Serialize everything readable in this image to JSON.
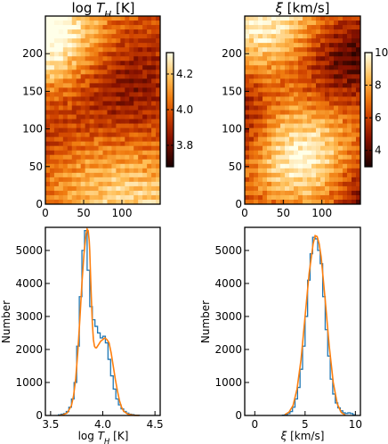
{
  "figure": {
    "panels": [
      {
        "id": "map-logTH",
        "title": "log T_H [K]"
      },
      {
        "id": "map-xi",
        "title": "ξ [km/s]"
      }
    ]
  },
  "chart_data": [
    {
      "type": "heatmap",
      "title": "log T_H [K]",
      "title_parts": {
        "base": "log ",
        "symbol": "T",
        "sub": "H",
        "unit": " [K]"
      },
      "xlim": [
        0,
        150
      ],
      "ylim": [
        0,
        250
      ],
      "x_ticks": [
        0,
        50,
        100
      ],
      "y_ticks": [
        0,
        50,
        100,
        150,
        200
      ],
      "colormap": "afmhot",
      "colorbar": {
        "range": [
          3.68,
          4.32
        ],
        "ticks": [
          3.8,
          4.0,
          4.2
        ],
        "tick_labels": [
          "3.8",
          "4.0",
          "4.2"
        ]
      },
      "pattern_seed": 7,
      "pattern_bias": 0.56
    },
    {
      "type": "heatmap",
      "title": "ξ [km/s]",
      "title_parts": {
        "base": "",
        "symbol": "ξ",
        "sub": "",
        "unit": " [km/s]"
      },
      "xlim": [
        0,
        150
      ],
      "ylim": [
        0,
        250
      ],
      "x_ticks": [
        0,
        50,
        100
      ],
      "y_ticks": [
        0,
        50,
        100,
        150,
        200
      ],
      "colormap": "afmhot",
      "colorbar": {
        "range": [
          3,
          10
        ],
        "ticks": [
          4,
          6,
          8,
          10
        ],
        "tick_labels": [
          "4",
          "6",
          "8",
          "10"
        ]
      },
      "pattern_seed": 23,
      "pattern_bias": 0.5
    },
    {
      "type": "histogram",
      "xlabel": "log T_H [K]",
      "xlabel_parts": {
        "base": "log ",
        "symbol": "T",
        "sub": "H",
        "unit": " [K]"
      },
      "ylabel": "Number",
      "xlim": [
        3.45,
        4.55
      ],
      "ylim": [
        0,
        5700
      ],
      "x_ticks": [
        3.5,
        4.0,
        4.5
      ],
      "x_tick_labels": [
        "3.5",
        "4.0",
        "4.5"
      ],
      "y_ticks": [
        0,
        1000,
        2000,
        3000,
        4000,
        5000
      ],
      "y_tick_labels": [
        "0",
        "1000",
        "2000",
        "3000",
        "4000",
        "5000"
      ],
      "bin_edges": [
        3.575,
        3.6,
        3.625,
        3.65,
        3.675,
        3.7,
        3.725,
        3.75,
        3.775,
        3.8,
        3.825,
        3.85,
        3.875,
        3.9,
        3.925,
        3.95,
        3.975,
        4.0,
        4.025,
        4.05,
        4.075,
        4.1,
        4.125,
        4.15,
        4.175,
        4.2,
        4.225,
        4.25,
        4.275,
        4.3,
        4.325,
        4.35
      ],
      "counts": [
        20,
        40,
        60,
        120,
        250,
        500,
        1000,
        2100,
        3600,
        5000,
        5600,
        4400,
        3300,
        2900,
        2700,
        2500,
        2350,
        2400,
        2200,
        1700,
        1200,
        800,
        500,
        320,
        200,
        120,
        70,
        40,
        25,
        10,
        5
      ],
      "fit_curve": {
        "x": [
          3.58,
          3.62,
          3.66,
          3.7,
          3.72,
          3.74,
          3.76,
          3.78,
          3.8,
          3.82,
          3.84,
          3.85,
          3.86,
          3.87,
          3.875,
          3.88,
          3.89,
          3.9,
          3.91,
          3.92,
          3.93,
          3.94,
          3.96,
          3.98,
          4.0,
          4.02,
          4.04,
          4.06,
          4.08,
          4.1,
          4.12,
          4.14,
          4.16,
          4.18,
          4.2,
          4.24,
          4.3,
          4.35
        ],
        "y": [
          0,
          20,
          80,
          300,
          600,
          1100,
          1900,
          2900,
          4000,
          4900,
          5500,
          5650,
          5600,
          5300,
          5000,
          4500,
          3600,
          2800,
          2300,
          2100,
          2050,
          2050,
          2150,
          2250,
          2300,
          2350,
          2300,
          2200,
          1900,
          1500,
          1100,
          750,
          450,
          250,
          130,
          40,
          5,
          0
        ]
      },
      "series_colors": {
        "histogram": "#1f77b4",
        "fit": "#ff7f0e"
      }
    },
    {
      "type": "histogram",
      "xlabel": "ξ [km/s]",
      "xlabel_parts": {
        "base": "",
        "symbol": "ξ",
        "sub": "",
        "unit": " [km/s]"
      },
      "ylabel": "Number",
      "xlim": [
        -1,
        10.5
      ],
      "ylim": [
        0,
        5700
      ],
      "x_ticks": [
        0,
        5,
        10
      ],
      "x_tick_labels": [
        "0",
        "5",
        "10"
      ],
      "y_ticks": [
        0,
        1000,
        2000,
        3000,
        4000,
        5000
      ],
      "y_tick_labels": [
        "0",
        "1000",
        "2000",
        "3000",
        "4000",
        "5000"
      ],
      "bin_edges": [
        2.75,
        3.0,
        3.25,
        3.5,
        3.75,
        4.0,
        4.25,
        4.5,
        4.75,
        5.0,
        5.25,
        5.5,
        5.75,
        6.0,
        6.25,
        6.5,
        6.75,
        7.0,
        7.25,
        7.5,
        7.75,
        8.0,
        8.25,
        8.5,
        8.75,
        9.0,
        9.25,
        9.5,
        9.75,
        10.0
      ],
      "counts": [
        10,
        30,
        60,
        120,
        250,
        500,
        850,
        1400,
        2100,
        3000,
        4100,
        4900,
        5400,
        5350,
        5000,
        4600,
        3600,
        2600,
        1800,
        1100,
        650,
        380,
        230,
        140,
        80,
        60,
        80,
        60,
        20
      ],
      "fit_curve": {
        "x": [
          3.0,
          3.4,
          3.8,
          4.2,
          4.6,
          5.0,
          5.4,
          5.8,
          6.0,
          6.2,
          6.4,
          6.6,
          7.0,
          7.4,
          7.8,
          8.2,
          8.6,
          9.0
        ],
        "y": [
          30,
          100,
          300,
          800,
          1700,
          3000,
          4300,
          5200,
          5450,
          5420,
          5200,
          4800,
          3500,
          2100,
          1000,
          350,
          90,
          10
        ]
      },
      "series_colors": {
        "histogram": "#1f77b4",
        "fit": "#ff7f0e"
      }
    }
  ]
}
